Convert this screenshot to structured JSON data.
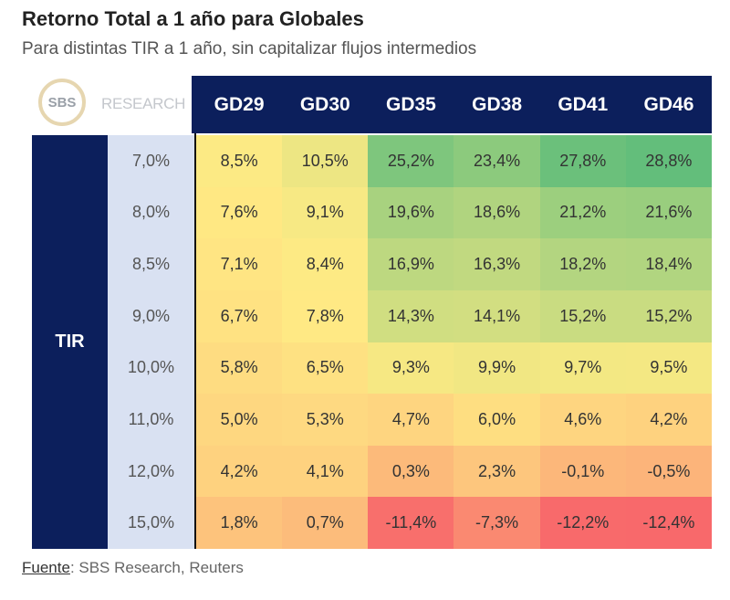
{
  "title": "Retorno Total a 1 año para Globales",
  "subtitle": "Para distintas TIR a 1 año, sin capitalizar flujos intermedios",
  "logo": {
    "mark": "SBS",
    "text": "RESEARCH"
  },
  "source": {
    "label": "Fuente",
    "text": ": SBS Research, Reuters"
  },
  "colors": {
    "navy": "#0c1f5c",
    "low": "#f8696b",
    "mid": "#ffeb84",
    "high": "#63be7b"
  },
  "chart_data": {
    "type": "heatmap",
    "row_header": "TIR",
    "columns": [
      "GD29",
      "GD30",
      "GD35",
      "GD38",
      "GD41",
      "GD46"
    ],
    "rows": [
      "7,0%",
      "8,0%",
      "8,5%",
      "9,0%",
      "10,0%",
      "11,0%",
      "12,0%",
      "15,0%"
    ],
    "values": [
      [
        8.5,
        10.5,
        25.2,
        23.4,
        27.8,
        28.8
      ],
      [
        7.6,
        9.1,
        19.6,
        18.6,
        21.2,
        21.6
      ],
      [
        7.1,
        8.4,
        16.9,
        16.3,
        18.2,
        18.4
      ],
      [
        6.7,
        7.8,
        14.3,
        14.1,
        15.2,
        15.2
      ],
      [
        5.8,
        6.5,
        9.3,
        9.9,
        9.7,
        9.5
      ],
      [
        5.0,
        5.3,
        4.7,
        6.0,
        4.6,
        4.2
      ],
      [
        4.2,
        4.1,
        0.3,
        2.3,
        -0.1,
        -0.5
      ],
      [
        1.8,
        0.7,
        -11.4,
        -7.3,
        -12.2,
        -12.4
      ]
    ]
  }
}
